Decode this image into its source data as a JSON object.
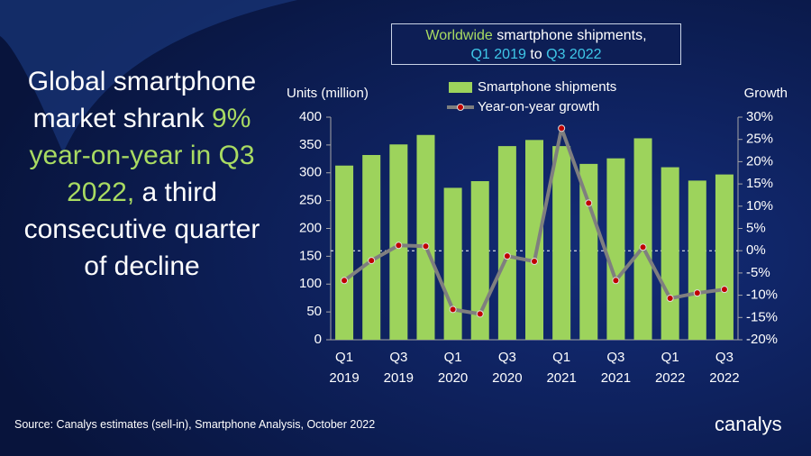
{
  "headline": [
    {
      "text": "Global smartphone market shrank",
      "color": "#ffffff"
    },
    {
      "text": "9% year-on-year in Q3 2022,",
      "color": "#a9db62"
    },
    {
      "text": "a third consecutive quarter of decline",
      "color": "#ffffff"
    }
  ],
  "source": "Source: Canalys estimates (sell-in), Smartphone Analysis, October 2022",
  "logo": "canalys",
  "chart_data": {
    "type": "bar-line",
    "title_lines": [
      [
        {
          "text": "Worldwide",
          "color": "#a9db62"
        },
        {
          "text": "smartphone shipments,",
          "color": "#ffffff"
        }
      ],
      [
        {
          "text": "Q1 2019",
          "color": "#3fc7e8"
        },
        {
          "text": "to",
          "color": "#ffffff"
        },
        {
          "text": "Q3 2022",
          "color": "#3fc7e8"
        }
      ]
    ],
    "y_label": "Units (million)",
    "y2_label": "Growth",
    "categories": [
      "Q1 2019",
      null,
      "Q3 2019",
      null,
      "Q1 2020",
      null,
      "Q3 2020",
      null,
      "Q1 2021",
      null,
      "Q3 2021",
      null,
      "Q1 2022",
      null,
      "Q3 2022"
    ],
    "series": [
      {
        "name": "Smartphone shipments",
        "color": "#9dd35c",
        "type": "bar",
        "values": [
          313,
          332,
          351,
          368,
          273,
          285,
          348,
          359,
          348,
          316,
          326,
          362,
          310,
          286,
          297
        ]
      },
      {
        "name": "Year-on-year growth",
        "color": "#7f7f7f",
        "marker_color": "#c00000",
        "type": "line",
        "axis": "y2",
        "values": [
          -6.7,
          -2.2,
          1.2,
          1.0,
          -13.2,
          -14.2,
          -1.2,
          -2.4,
          27.5,
          10.7,
          -6.7,
          0.8,
          -10.7,
          -9.5,
          -8.7
        ]
      }
    ],
    "ylim": [
      0,
      400
    ],
    "yticks": [
      0,
      50,
      100,
      150,
      200,
      250,
      300,
      350,
      400
    ],
    "y2lim": [
      -20,
      30
    ],
    "y2ticks": [
      {
        "value": -20,
        "label": "-20%"
      },
      {
        "value": -15,
        "label": "-15%"
      },
      {
        "value": -10,
        "label": "-10%"
      },
      {
        "value": -5,
        "label": "-5%"
      },
      {
        "value": 0,
        "label": "0%"
      },
      {
        "value": 5,
        "label": "5%"
      },
      {
        "value": 10,
        "label": "10%"
      },
      {
        "value": 15,
        "label": "15%"
      },
      {
        "value": 20,
        "label": "20%"
      },
      {
        "value": 25,
        "label": "25%"
      },
      {
        "value": 30,
        "label": "30%"
      }
    ],
    "y2_zero_line": true
  }
}
